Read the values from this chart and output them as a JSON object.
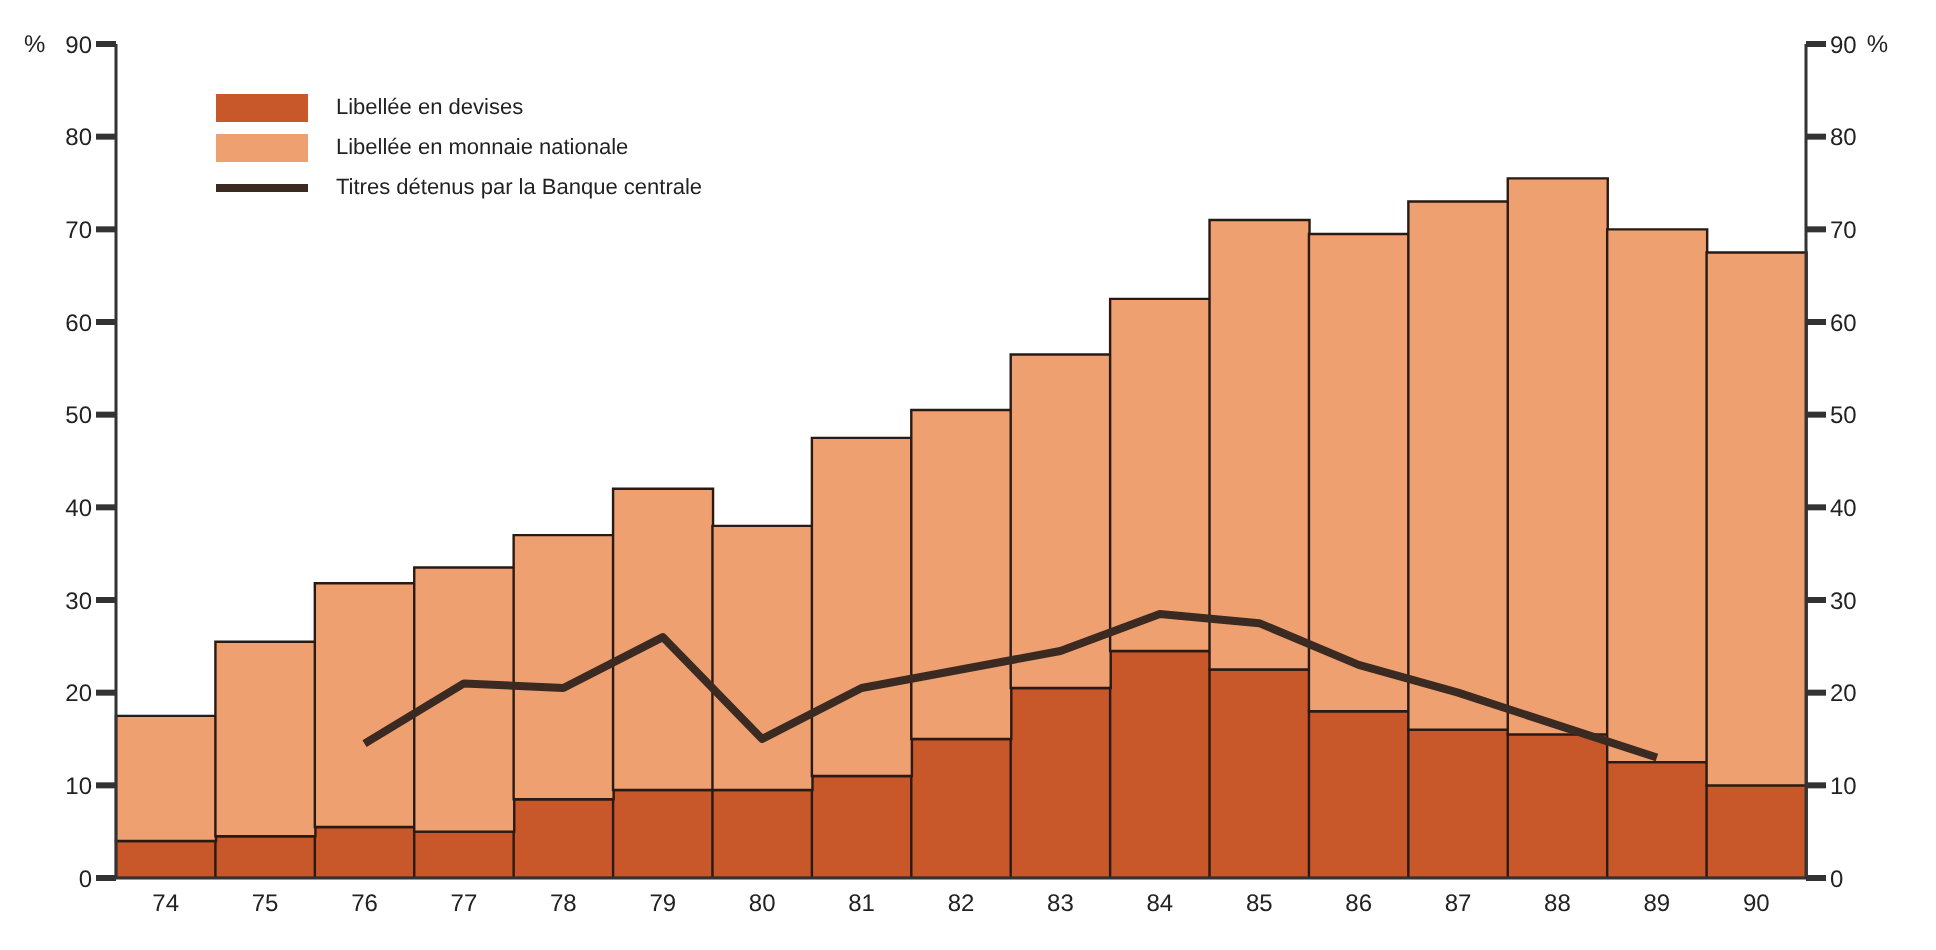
{
  "chart_data": {
    "type": "bar",
    "stacked": true,
    "ylabel": "%",
    "y2label": "%",
    "categories": [
      "74",
      "75",
      "76",
      "77",
      "78",
      "79",
      "80",
      "81",
      "82",
      "83",
      "84",
      "85",
      "86",
      "87",
      "88",
      "89",
      "90"
    ],
    "series": [
      {
        "name": "Libellée en devises",
        "color": "#c8582a",
        "values": [
          4,
          4.5,
          5.5,
          5,
          8.5,
          9.5,
          9.5,
          11,
          15,
          20.5,
          24.5,
          22.5,
          18,
          16,
          15.5,
          12.5,
          10
        ]
      },
      {
        "name": "Libellée en monnaie nationale",
        "color": "#eea070",
        "values": [
          13.5,
          21,
          26.3,
          28.5,
          28.5,
          32.5,
          28.5,
          36.5,
          35.5,
          36,
          38,
          48.5,
          51.5,
          57,
          60,
          57.5,
          57.5
        ]
      },
      {
        "name": "Titres détenus par la Banque centrale",
        "type": "line",
        "color": "#3a2a22",
        "values": [
          null,
          null,
          14.5,
          21,
          20.5,
          26,
          15,
          20.5,
          22.5,
          24.5,
          28.5,
          27.5,
          23,
          20,
          16.5,
          13,
          null
        ]
      }
    ],
    "ylim": [
      0,
      90
    ],
    "yticks": [
      0,
      10,
      20,
      30,
      40,
      50,
      60,
      70,
      80,
      90
    ],
    "y2lim": [
      0,
      90
    ],
    "y2ticks": [
      0,
      10,
      20,
      30,
      40,
      50,
      60,
      70,
      80,
      90
    ],
    "legend": "top left",
    "grid": false,
    "marker": "none"
  }
}
